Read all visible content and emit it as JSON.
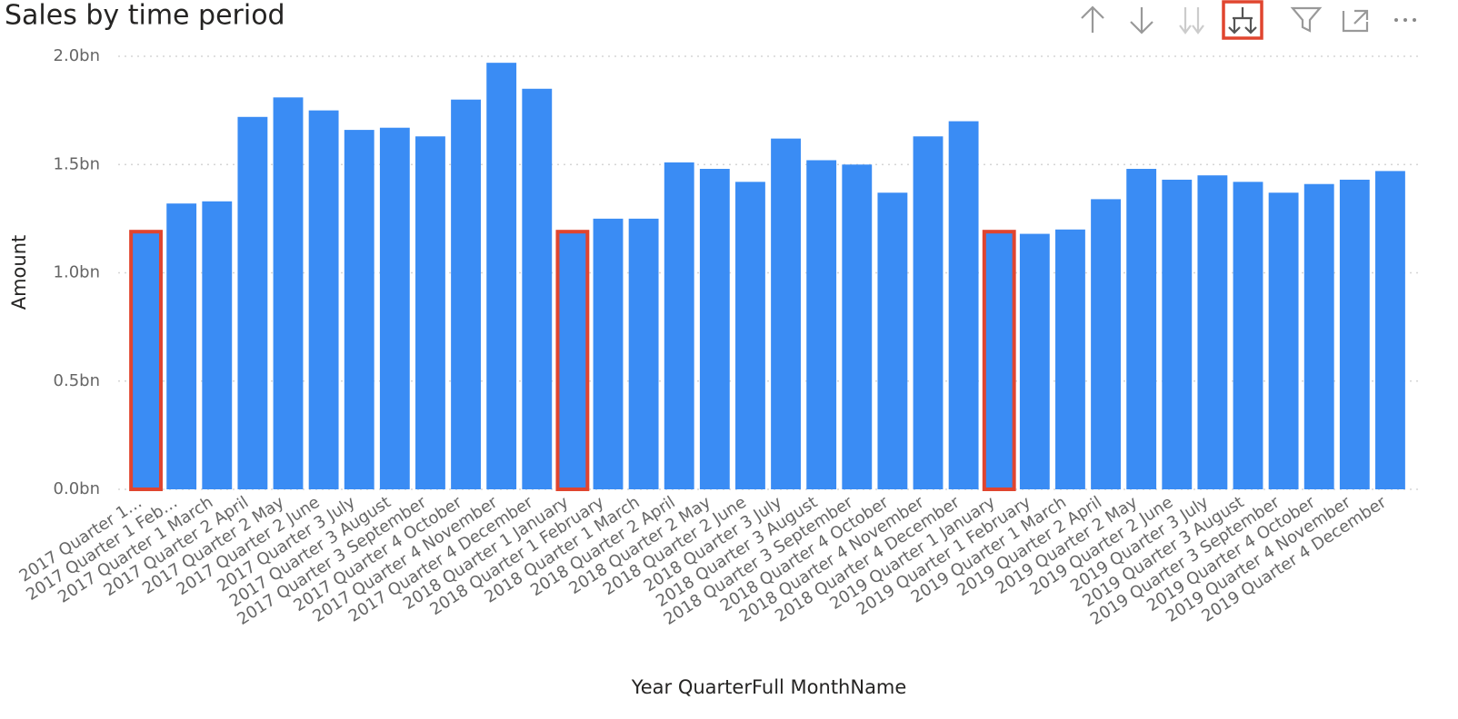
{
  "chart_data": {
    "type": "bar",
    "title": "Sales by time period",
    "x_label": "Year QuarterFull MonthName",
    "y_label": "Amount",
    "categories": [
      "2017 Quarter 1…",
      "2017 Quarter 1 Feb…",
      "2017 Quarter 1 March",
      "2017 Quarter 2 April",
      "2017 Quarter 2 May",
      "2017 Quarter 2 June",
      "2017 Quarter 3 July",
      "2017 Quarter 3 August",
      "2017 Quarter 3 September",
      "2017 Quarter 4 October",
      "2017 Quarter 4 November",
      "2017 Quarter 4 December",
      "2018 Quarter 1 January",
      "2018 Quarter 1 February",
      "2018 Quarter 1 March",
      "2018 Quarter 2 April",
      "2018 Quarter 2 May",
      "2018 Quarter 2 June",
      "2018 Quarter 3 July",
      "2018 Quarter 3 August",
      "2018 Quarter 3 September",
      "2018 Quarter 4 October",
      "2018 Quarter 4 November",
      "2018 Quarter 4 December",
      "2019 Quarter 1 January",
      "2019 Quarter 1 February",
      "2019 Quarter 1 March",
      "2019 Quarter 2 April",
      "2019 Quarter 2 May",
      "2019 Quarter 2 June",
      "2019 Quarter 3 July",
      "2019 Quarter 3 August",
      "2019 Quarter 3 September",
      "2019 Quarter 4 October",
      "2019 Quarter 4 November",
      "2019 Quarter 4 December"
    ],
    "values": [
      1.19,
      1.32,
      1.33,
      1.72,
      1.81,
      1.75,
      1.66,
      1.67,
      1.63,
      1.8,
      1.97,
      1.85,
      1.19,
      1.25,
      1.25,
      1.51,
      1.48,
      1.42,
      1.62,
      1.52,
      1.5,
      1.37,
      1.63,
      1.7,
      1.19,
      1.18,
      1.2,
      1.34,
      1.48,
      1.43,
      1.45,
      1.42,
      1.37,
      1.41,
      1.43,
      1.47
    ],
    "color": "#3a8cf4",
    "highlight_color": "#e0452f",
    "highlighted": [
      0,
      12,
      24
    ],
    "ylim": [
      0,
      2.0
    ],
    "yticks": [
      {
        "value": 0,
        "label": "0.0bn"
      },
      {
        "value": 0.5,
        "label": "0.5bn"
      },
      {
        "value": 1.0,
        "label": "1.0bn"
      },
      {
        "value": 1.5,
        "label": "1.5bn"
      },
      {
        "value": 2.0,
        "label": "2.0bn"
      }
    ],
    "grid": true
  }
}
